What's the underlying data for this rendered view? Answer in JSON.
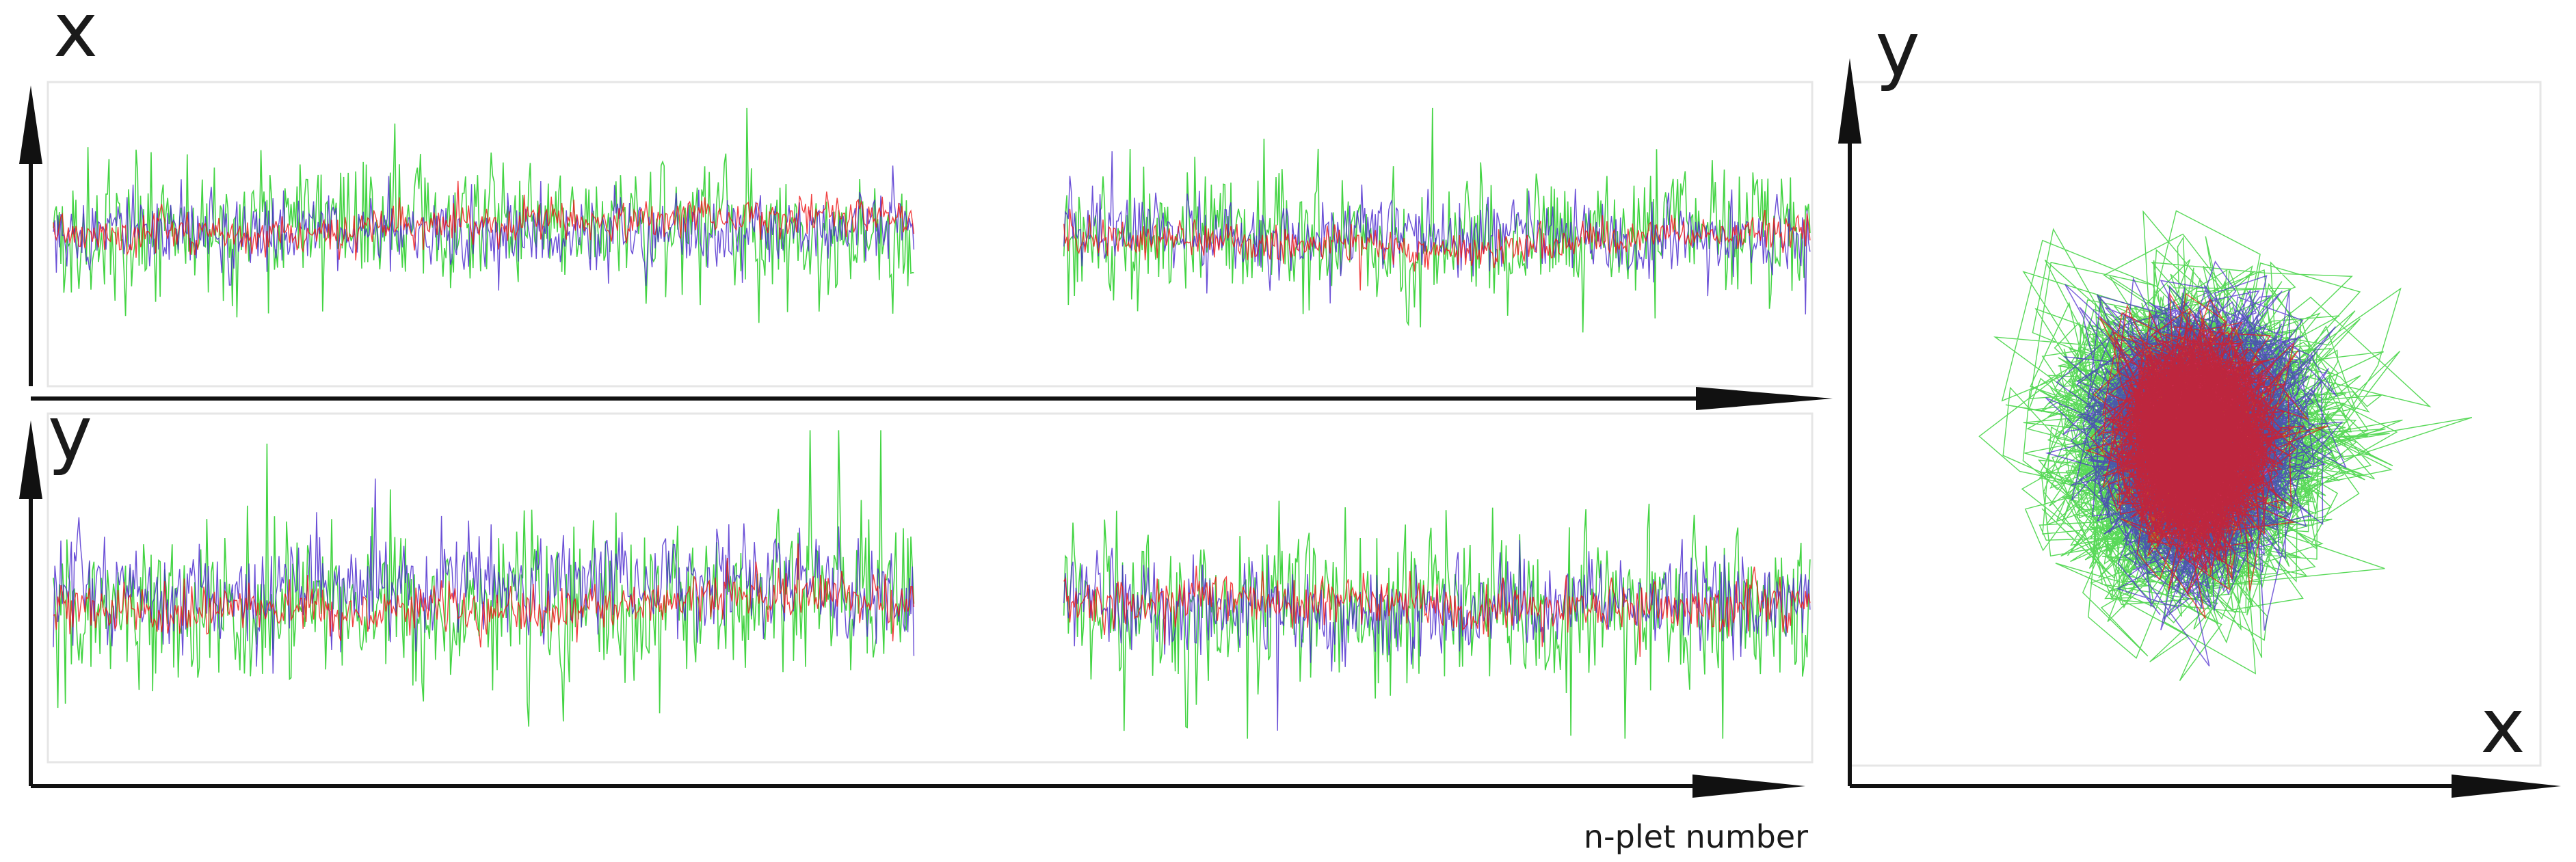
{
  "chart_data": [
    {
      "type": "line",
      "panel": "x-trace",
      "ylabel": "x",
      "xlabel": "",
      "segments": [
        [
          0,
          0.49
        ],
        [
          0.575,
          1.0
        ]
      ],
      "series": [
        {
          "color": "#22cc22",
          "center": 0.52,
          "spread": 0.34,
          "spike": 0.5
        },
        {
          "color": "#4422cc",
          "center": 0.52,
          "spread": 0.2,
          "spike": 0.2
        },
        {
          "color": "#ee1111",
          "center": 0.52,
          "spread": 0.1,
          "spike": 0.1
        }
      ]
    },
    {
      "type": "line",
      "panel": "y-trace",
      "ylabel": "y",
      "xlabel": "n-plet number",
      "segments": [
        [
          0,
          0.49
        ],
        [
          0.575,
          1.0
        ]
      ],
      "series": [
        {
          "color": "#22cc22",
          "center": 0.45,
          "spread": 0.36,
          "spike": 0.55
        },
        {
          "color": "#4422cc",
          "center": 0.45,
          "spread": 0.22,
          "spike": 0.22
        },
        {
          "color": "#ee1111",
          "center": 0.45,
          "spread": 0.11,
          "spike": 0.11
        }
      ]
    },
    {
      "type": "scatter",
      "panel": "xy-trajectory",
      "xlabel": "x",
      "ylabel": "y",
      "series": [
        {
          "color": "#22cc22",
          "rx": 0.46,
          "ry": 0.47
        },
        {
          "color": "#4422cc",
          "rx": 0.3,
          "ry": 0.38
        },
        {
          "color": "#ee1111",
          "rx": 0.22,
          "ry": 0.3
        }
      ]
    }
  ]
}
